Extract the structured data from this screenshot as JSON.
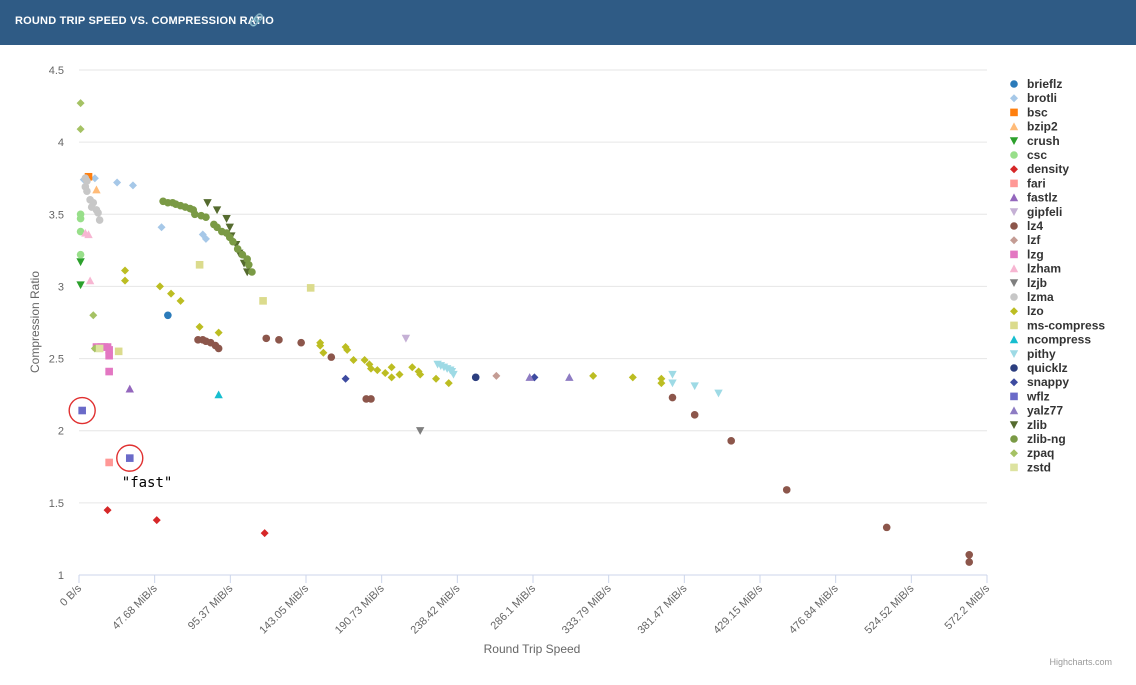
{
  "header": {
    "title": "ROUND TRIP SPEED VS. COMPRESSION RATIO",
    "link_icon": "link-icon"
  },
  "credit": "Highcharts.com",
  "chart_data": {
    "type": "scatter",
    "title": "ROUND TRIP SPEED VS. COMPRESSION RATIO",
    "xlabel": "Round Trip Speed",
    "ylabel": "Compression Ratio",
    "x_unit": "MiB/s",
    "xlim": [
      0,
      578
    ],
    "ylim": [
      1,
      4.5
    ],
    "x_ticks": [
      "0 B/s",
      "47.68 MiB/s",
      "95.37 MiB/s",
      "143.05 MiB/s",
      "190.73 MiB/s",
      "238.42 MiB/s",
      "286.1 MiB/s",
      "333.79 MiB/s",
      "381.47 MiB/s",
      "429.15 MiB/s",
      "476.84 MiB/s",
      "524.52 MiB/s",
      "572.2 MiB/s"
    ],
    "x_tick_values": [
      0,
      47.68,
      95.37,
      143.05,
      190.73,
      238.42,
      286.1,
      333.79,
      381.47,
      429.15,
      476.84,
      524.52,
      572.2
    ],
    "y_ticks": [
      "1",
      "1.5",
      "2",
      "2.5",
      "3",
      "3.5",
      "4",
      "4.5"
    ],
    "y_tick_values": [
      1,
      1.5,
      2,
      2.5,
      3,
      3.5,
      4,
      4.5
    ],
    "grid": true,
    "legend_position": "right",
    "annotations": [
      {
        "text": "\"fast\"",
        "x": 32,
        "y": 1.81
      }
    ],
    "highlight_circles": [
      {
        "x": 2,
        "y": 2.14
      },
      {
        "x": 32,
        "y": 1.81
      }
    ],
    "series": [
      {
        "name": "brieflz",
        "color": "#2b7bba",
        "marker": "circle",
        "points": [
          [
            56,
            2.8
          ]
        ]
      },
      {
        "name": "brotli",
        "color": "#a6c8e8",
        "marker": "diamond",
        "points": [
          [
            3,
            3.74
          ],
          [
            10,
            3.75
          ],
          [
            24,
            3.72
          ],
          [
            34,
            3.7
          ],
          [
            52,
            3.41
          ],
          [
            78,
            3.36
          ],
          [
            80,
            3.33
          ]
        ]
      },
      {
        "name": "bsc",
        "color": "#ff7f0e",
        "marker": "square",
        "points": [
          [
            6,
            3.76
          ]
        ]
      },
      {
        "name": "bzip2",
        "color": "#ffbb78",
        "marker": "triangle",
        "points": [
          [
            11,
            3.67
          ]
        ]
      },
      {
        "name": "crush",
        "color": "#2ca02c",
        "marker": "triangle-down",
        "points": [
          [
            1,
            3.17
          ],
          [
            1,
            3.01
          ]
        ]
      },
      {
        "name": "csc",
        "color": "#98df8a",
        "marker": "circle",
        "points": [
          [
            1,
            3.5
          ],
          [
            1,
            3.47
          ],
          [
            1,
            3.38
          ],
          [
            1,
            3.22
          ]
        ]
      },
      {
        "name": "density",
        "color": "#d62728",
        "marker": "diamond",
        "points": [
          [
            18,
            1.45
          ],
          [
            49,
            1.38
          ],
          [
            117,
            1.29
          ]
        ]
      },
      {
        "name": "fari",
        "color": "#ff9896",
        "marker": "square",
        "points": [
          [
            19,
            1.78
          ]
        ]
      },
      {
        "name": "fastlz",
        "color": "#9467bd",
        "marker": "triangle",
        "points": [
          [
            32,
            2.29
          ]
        ]
      },
      {
        "name": "gipfeli",
        "color": "#c5b0d5",
        "marker": "triangle-down",
        "points": [
          [
            206,
            2.64
          ]
        ]
      },
      {
        "name": "lz4",
        "color": "#8c564b",
        "marker": "circle",
        "points": [
          [
            75,
            2.63
          ],
          [
            78,
            2.63
          ],
          [
            80,
            2.62
          ],
          [
            83,
            2.61
          ],
          [
            86,
            2.59
          ],
          [
            88,
            2.57
          ],
          [
            118,
            2.64
          ],
          [
            126,
            2.63
          ],
          [
            140,
            2.61
          ],
          [
            159,
            2.51
          ],
          [
            181,
            2.22
          ],
          [
            184,
            2.22
          ],
          [
            374,
            2.23
          ],
          [
            388,
            2.11
          ],
          [
            411,
            1.93
          ],
          [
            446,
            1.59
          ],
          [
            509,
            1.33
          ],
          [
            561,
            1.14
          ],
          [
            561,
            1.09
          ]
        ]
      },
      {
        "name": "lzf",
        "color": "#c49c94",
        "marker": "diamond",
        "points": [
          [
            263,
            2.38
          ]
        ]
      },
      {
        "name": "lzg",
        "color": "#e377c2",
        "marker": "square",
        "points": [
          [
            11,
            2.58
          ],
          [
            14,
            2.58
          ],
          [
            16,
            2.58
          ],
          [
            18,
            2.58
          ],
          [
            19,
            2.56
          ],
          [
            19,
            2.52
          ],
          [
            19,
            2.41
          ]
        ]
      },
      {
        "name": "lzham",
        "color": "#f7b6d2",
        "marker": "triangle",
        "points": [
          [
            4,
            3.37
          ],
          [
            6,
            3.36
          ],
          [
            7,
            3.04
          ]
        ]
      },
      {
        "name": "lzjb",
        "color": "#7f7f7f",
        "marker": "triangle-down",
        "points": [
          [
            215,
            2
          ]
        ]
      },
      {
        "name": "lzma",
        "color": "#c7c7c7",
        "marker": "circle",
        "points": [
          [
            4,
            3.75
          ],
          [
            5,
            3.73
          ],
          [
            4,
            3.69
          ],
          [
            5,
            3.66
          ],
          [
            7,
            3.6
          ],
          [
            9,
            3.58
          ],
          [
            8,
            3.55
          ],
          [
            11,
            3.53
          ],
          [
            12,
            3.51
          ],
          [
            13,
            3.46
          ]
        ]
      },
      {
        "name": "lzo",
        "color": "#bcbd22",
        "marker": "diamond",
        "points": [
          [
            29,
            3.11
          ],
          [
            29,
            3.04
          ],
          [
            51,
            3
          ],
          [
            58,
            2.95
          ],
          [
            64,
            2.9
          ],
          [
            76,
            2.72
          ],
          [
            88,
            2.68
          ],
          [
            152,
            2.61
          ],
          [
            152,
            2.59
          ],
          [
            154,
            2.54
          ],
          [
            168,
            2.58
          ],
          [
            169,
            2.56
          ],
          [
            173,
            2.49
          ],
          [
            180,
            2.49
          ],
          [
            183,
            2.46
          ],
          [
            184,
            2.43
          ],
          [
            188,
            2.42
          ],
          [
            193,
            2.4
          ],
          [
            197,
            2.44
          ],
          [
            197,
            2.37
          ],
          [
            202,
            2.39
          ],
          [
            210,
            2.44
          ],
          [
            214,
            2.41
          ],
          [
            215,
            2.39
          ],
          [
            225,
            2.36
          ],
          [
            233,
            2.33
          ],
          [
            324,
            2.38
          ],
          [
            349,
            2.37
          ],
          [
            367,
            2.36
          ],
          [
            367,
            2.33
          ]
        ]
      },
      {
        "name": "ms-compress",
        "color": "#dbdb8d",
        "marker": "square",
        "points": [
          [
            25,
            2.55
          ],
          [
            76,
            3.15
          ],
          [
            116,
            2.9
          ],
          [
            146,
            2.99
          ]
        ]
      },
      {
        "name": "ncompress",
        "color": "#17becf",
        "marker": "triangle",
        "points": [
          [
            88,
            2.25
          ]
        ]
      },
      {
        "name": "pithy",
        "color": "#9edae5",
        "marker": "triangle-down",
        "points": [
          [
            226,
            2.46
          ],
          [
            228,
            2.45
          ],
          [
            230,
            2.44
          ],
          [
            232,
            2.43
          ],
          [
            234,
            2.42
          ],
          [
            235,
            2.41
          ],
          [
            236,
            2.39
          ],
          [
            374,
            2.39
          ],
          [
            374,
            2.33
          ],
          [
            388,
            2.31
          ],
          [
            403,
            2.26
          ]
        ]
      },
      {
        "name": "quicklz",
        "color": "#2c3e7f",
        "marker": "circle",
        "points": [
          [
            250,
            2.37
          ]
        ]
      },
      {
        "name": "snappy",
        "color": "#3d4ba0",
        "marker": "diamond",
        "points": [
          [
            168,
            2.36
          ],
          [
            287,
            2.37
          ]
        ]
      },
      {
        "name": "wflz",
        "color": "#6a6ac8",
        "marker": "square",
        "points": [
          [
            2,
            2.14
          ],
          [
            32,
            1.81
          ]
        ]
      },
      {
        "name": "yalz77",
        "color": "#8e7cc3",
        "marker": "triangle",
        "points": [
          [
            284,
            2.37
          ],
          [
            309,
            2.37
          ]
        ]
      },
      {
        "name": "zlib",
        "color": "#556b2f",
        "marker": "triangle-down",
        "points": [
          [
            81,
            3.58
          ],
          [
            87,
            3.53
          ],
          [
            93,
            3.47
          ],
          [
            95,
            3.41
          ],
          [
            96,
            3.35
          ],
          [
            99,
            3.29
          ],
          [
            101,
            3.23
          ],
          [
            104,
            3.16
          ],
          [
            106,
            3.1
          ]
        ]
      },
      {
        "name": "zlib-ng",
        "color": "#7a9a45",
        "marker": "circle",
        "points": [
          [
            53,
            3.59
          ],
          [
            56,
            3.58
          ],
          [
            59,
            3.58
          ],
          [
            61,
            3.57
          ],
          [
            64,
            3.56
          ],
          [
            67,
            3.55
          ],
          [
            70,
            3.54
          ],
          [
            72,
            3.53
          ],
          [
            73,
            3.5
          ],
          [
            77,
            3.49
          ],
          [
            80,
            3.48
          ],
          [
            85,
            3.43
          ],
          [
            87,
            3.41
          ],
          [
            90,
            3.38
          ],
          [
            93,
            3.37
          ],
          [
            95,
            3.34
          ],
          [
            97,
            3.31
          ],
          [
            100,
            3.26
          ],
          [
            103,
            3.22
          ],
          [
            106,
            3.19
          ],
          [
            107,
            3.15
          ],
          [
            109,
            3.1
          ]
        ]
      },
      {
        "name": "zpaq",
        "color": "#a5c264",
        "marker": "diamond",
        "points": [
          [
            1,
            4.27
          ],
          [
            1,
            4.09
          ],
          [
            9,
            2.8
          ],
          [
            10,
            2.57
          ]
        ]
      },
      {
        "name": "zstd",
        "color": "#dde3a0",
        "marker": "square",
        "points": [
          [
            13,
            2.57
          ]
        ]
      }
    ]
  }
}
